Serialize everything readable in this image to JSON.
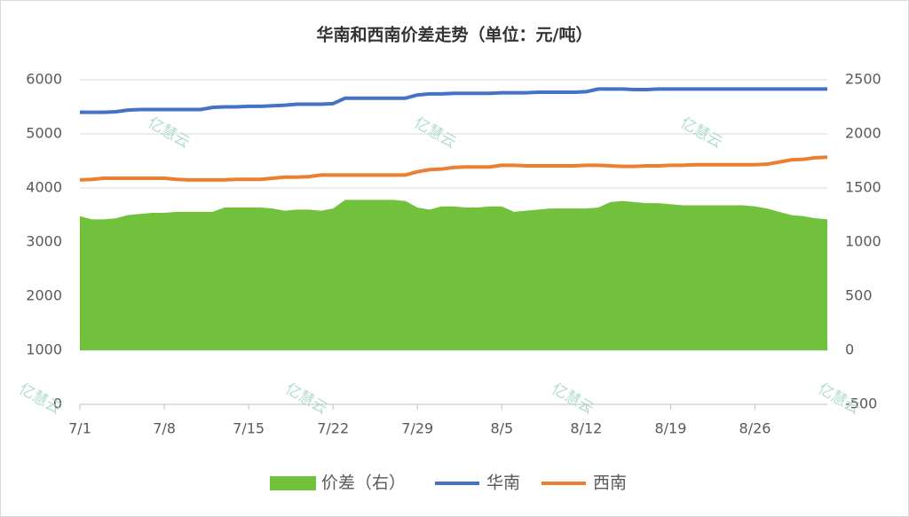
{
  "chart_data": {
    "type": "line",
    "title": "华南和西南价差走势（单位：元/吨）",
    "watermark": "亿慧云",
    "categories": [
      "7/1",
      null,
      null,
      null,
      null,
      null,
      null,
      "7/8",
      null,
      null,
      null,
      null,
      null,
      null,
      "7/15",
      null,
      null,
      null,
      null,
      null,
      null,
      "7/22",
      null,
      null,
      null,
      null,
      null,
      null,
      "7/29",
      null,
      null,
      null,
      null,
      null,
      null,
      "8/5",
      null,
      null,
      null,
      null,
      null,
      null,
      "8/12",
      null,
      null,
      null,
      null,
      null,
      null,
      "8/19",
      null,
      null,
      null,
      null,
      null,
      null,
      "8/26",
      null,
      null,
      null,
      null,
      null,
      null
    ],
    "ylim": [
      0,
      6000
    ],
    "yticks": [
      0,
      1000,
      2000,
      3000,
      4000,
      5000,
      6000
    ],
    "y2lim": [
      -500,
      2500
    ],
    "y2ticks": [
      -500,
      0,
      500,
      1000,
      1500,
      2000,
      2500
    ],
    "grid": true,
    "legend": "bottom",
    "series": [
      {
        "name": "价差（右）",
        "type": "area",
        "axis": "y2",
        "color": "#72c13c",
        "values": [
          1240,
          1210,
          1210,
          1220,
          1250,
          1260,
          1270,
          1270,
          1280,
          1280,
          1280,
          1280,
          1320,
          1320,
          1320,
          1320,
          1310,
          1290,
          1300,
          1300,
          1290,
          1310,
          1390,
          1390,
          1390,
          1390,
          1390,
          1380,
          1320,
          1300,
          1330,
          1330,
          1320,
          1320,
          1330,
          1330,
          1280,
          1290,
          1300,
          1310,
          1310,
          1310,
          1310,
          1320,
          1370,
          1380,
          1370,
          1360,
          1360,
          1350,
          1340,
          1340,
          1340,
          1340,
          1340,
          1340,
          1330,
          1310,
          1280,
          1250,
          1240,
          1220,
          1210
        ]
      },
      {
        "name": "华南",
        "type": "line",
        "color": "#4472c4",
        "values": [
          5400,
          5400,
          5400,
          5410,
          5440,
          5450,
          5450,
          5450,
          5450,
          5450,
          5450,
          5490,
          5500,
          5500,
          5510,
          5510,
          5520,
          5530,
          5550,
          5550,
          5550,
          5560,
          5660,
          5660,
          5660,
          5660,
          5660,
          5660,
          5720,
          5740,
          5740,
          5750,
          5750,
          5750,
          5750,
          5760,
          5760,
          5760,
          5770,
          5770,
          5770,
          5770,
          5780,
          5830,
          5830,
          5830,
          5820,
          5820,
          5830,
          5830,
          5830,
          5830,
          5830,
          5830,
          5830,
          5830,
          5830,
          5830,
          5830,
          5830,
          5830,
          5830,
          5830
        ]
      },
      {
        "name": "西南",
        "type": "line",
        "color": "#ed7d31",
        "values": [
          4150,
          4160,
          4180,
          4180,
          4180,
          4180,
          4180,
          4180,
          4160,
          4150,
          4150,
          4150,
          4150,
          4160,
          4160,
          4160,
          4180,
          4200,
          4200,
          4210,
          4240,
          4240,
          4240,
          4240,
          4240,
          4240,
          4240,
          4240,
          4300,
          4340,
          4350,
          4380,
          4390,
          4390,
          4390,
          4420,
          4420,
          4410,
          4410,
          4410,
          4410,
          4410,
          4420,
          4420,
          4410,
          4400,
          4400,
          4410,
          4410,
          4420,
          4420,
          4430,
          4430,
          4430,
          4430,
          4430,
          4430,
          4440,
          4480,
          4520,
          4530,
          4560,
          4570
        ]
      }
    ]
  }
}
